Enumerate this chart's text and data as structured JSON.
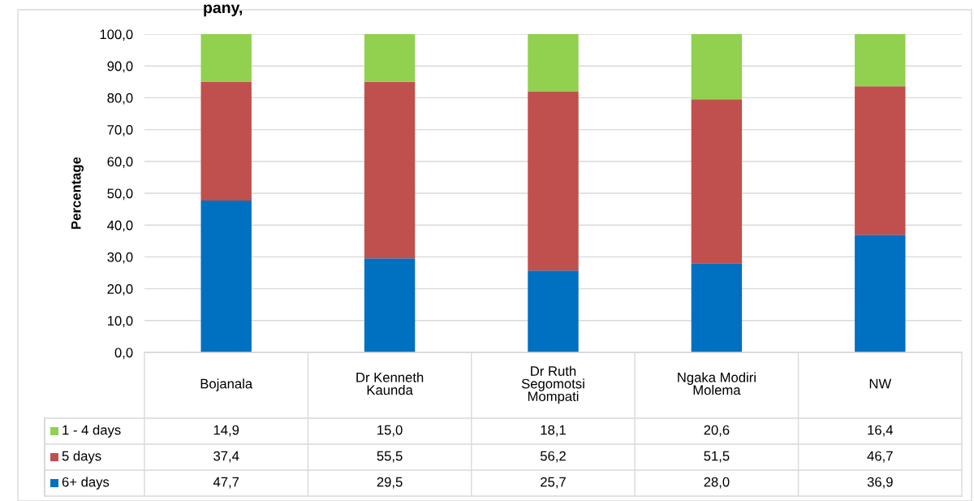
{
  "chart_data": {
    "type": "bar",
    "stacked": true,
    "title": "pany,",
    "categories": [
      "Bojanala",
      "Dr Kenneth\nKaunda",
      "Dr Ruth\nSegomotsi\nMompati",
      "Ngaka Modiri\nMolema",
      "NW"
    ],
    "series": [
      {
        "name": "6+ days",
        "color": "#0070c0",
        "values": [
          47.7,
          29.5,
          25.7,
          28.0,
          36.9
        ],
        "value_labels": [
          "47,7",
          "29,5",
          "25,7",
          "28,0",
          "36,9"
        ]
      },
      {
        "name": "5 days",
        "color": "#c0504d",
        "values": [
          37.4,
          55.5,
          56.2,
          51.5,
          46.7
        ],
        "value_labels": [
          "37,4",
          "55,5",
          "56,2",
          "51,5",
          "46,7"
        ]
      },
      {
        "name": "1 - 4 days",
        "color": "#92d050",
        "values": [
          14.9,
          15.0,
          18.1,
          20.6,
          16.4
        ],
        "value_labels": [
          "14,9",
          "15,0",
          "18,1",
          "20,6",
          "16,4"
        ]
      }
    ],
    "ylabel": "Percentage",
    "ylim": [
      0,
      100
    ],
    "yticks": [
      {
        "value": 0,
        "label": "0,0"
      },
      {
        "value": 10,
        "label": "10,0"
      },
      {
        "value": 20,
        "label": "20,0"
      },
      {
        "value": 30,
        "label": "30,0"
      },
      {
        "value": 40,
        "label": "40,0"
      },
      {
        "value": 50,
        "label": "50,0"
      },
      {
        "value": 60,
        "label": "60,0"
      },
      {
        "value": 70,
        "label": "70,0"
      },
      {
        "value": 80,
        "label": "80,0"
      },
      {
        "value": 90,
        "label": "90,0"
      },
      {
        "value": 100,
        "label": "100,0"
      }
    ],
    "grid": "y",
    "legend": "bottom"
  }
}
